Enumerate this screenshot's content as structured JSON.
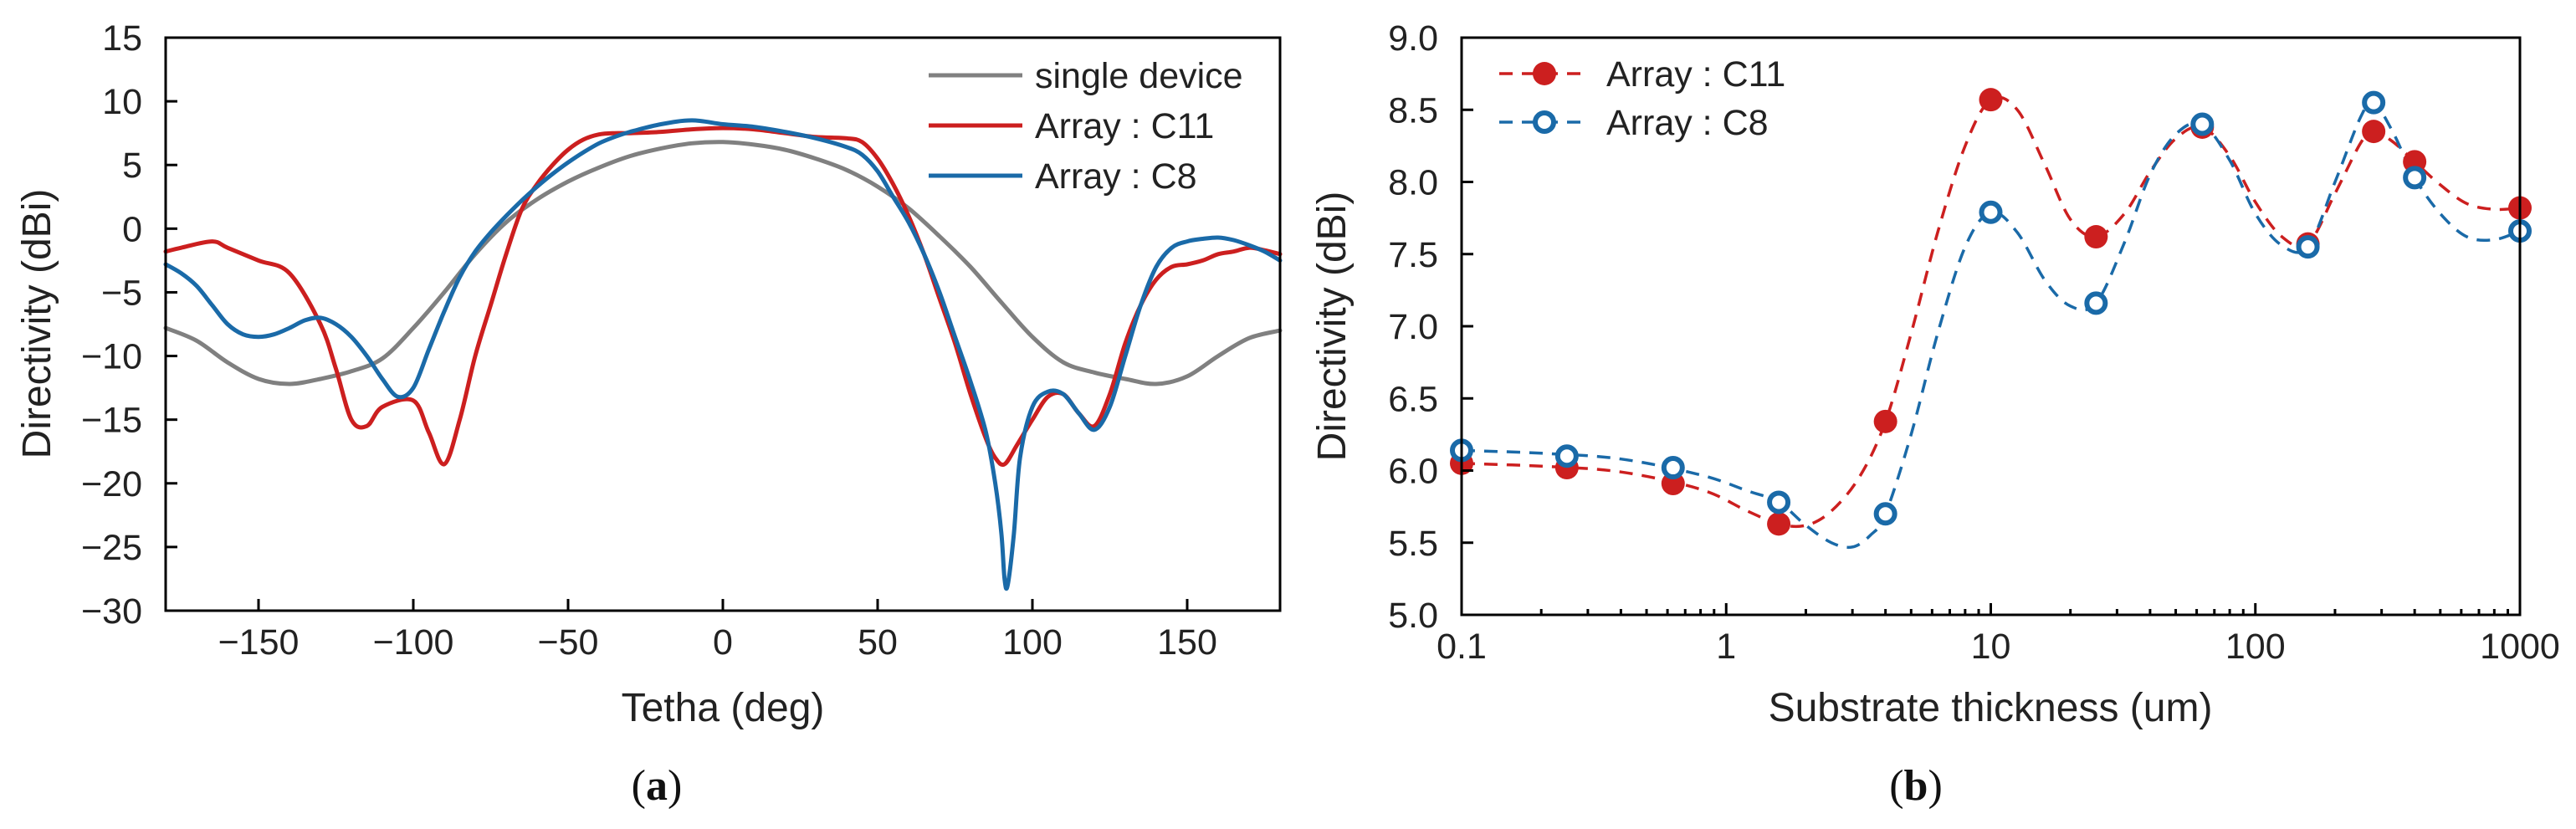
{
  "chart_data": [
    {
      "type": "line",
      "panel": "a",
      "panel_label": {
        "open": "(",
        "letter": "a",
        "close": ")"
      },
      "xlabel": "Tetha (deg)",
      "ylabel": "Directivity (dBi)",
      "xlim": [
        -180,
        180
      ],
      "ylim": [
        -30,
        15
      ],
      "xticks": [
        -150,
        -100,
        -50,
        0,
        50,
        100,
        150
      ],
      "yticks": [
        -30,
        -25,
        -20,
        -15,
        -10,
        -5,
        0,
        5,
        10,
        15
      ],
      "legend_position": "top-right",
      "series": [
        {
          "name": "single device",
          "color": "#808080",
          "x": [
            -180,
            -170,
            -160,
            -150,
            -140,
            -130,
            -120,
            -110,
            -100,
            -90,
            -80,
            -70,
            -60,
            -50,
            -40,
            -30,
            -20,
            -10,
            0,
            10,
            20,
            30,
            40,
            50,
            60,
            70,
            80,
            90,
            100,
            110,
            120,
            130,
            140,
            150,
            160,
            170,
            180
          ],
          "y": [
            -7.8,
            -8.8,
            -10.5,
            -11.8,
            -12.2,
            -11.8,
            -11.2,
            -10.2,
            -7.8,
            -5,
            -2,
            0.5,
            2.3,
            3.7,
            4.8,
            5.7,
            6.3,
            6.7,
            6.8,
            6.6,
            6.2,
            5.5,
            4.6,
            3.3,
            1.6,
            -0.6,
            -3,
            -5.8,
            -8.5,
            -10.5,
            -11.3,
            -11.8,
            -12.2,
            -11.6,
            -10,
            -8.6,
            -8
          ]
        },
        {
          "name": "Array : C11",
          "color": "#cc1f1f",
          "x": [
            -180,
            -175,
            -165,
            -160,
            -150,
            -140,
            -130,
            -125,
            -120,
            -115,
            -110,
            -100,
            -95,
            -90,
            -85,
            -80,
            -75,
            -70,
            -65,
            -60,
            -55,
            -50,
            -45,
            -40,
            -35,
            -30,
            -20,
            -10,
            0,
            10,
            20,
            30,
            40,
            45,
            50,
            55,
            60,
            65,
            70,
            75,
            80,
            85,
            88,
            91,
            95,
            100,
            105,
            110,
            115,
            120,
            125,
            130,
            135,
            140,
            145,
            150,
            155,
            160,
            165,
            170,
            175,
            180
          ],
          "y": [
            -1.8,
            -1.5,
            -1,
            -1.5,
            -2.5,
            -3.5,
            -7.5,
            -11,
            -15,
            -15.5,
            -14,
            -13.5,
            -16,
            -18.5,
            -15,
            -10,
            -6,
            -2,
            1.5,
            3.5,
            5,
            6.2,
            7,
            7.4,
            7.5,
            7.5,
            7.6,
            7.8,
            7.9,
            7.8,
            7.5,
            7.2,
            7.1,
            6.8,
            5.5,
            3.5,
            1,
            -2,
            -5.5,
            -9,
            -13,
            -16.5,
            -18,
            -18.5,
            -17,
            -15,
            -13.2,
            -13,
            -14.5,
            -15.5,
            -13,
            -9,
            -6,
            -4,
            -3,
            -2.8,
            -2.5,
            -2,
            -1.8,
            -1.5,
            -1.7,
            -2
          ]
        },
        {
          "name": "Array : C8",
          "color": "#1a6aa8",
          "x": [
            -180,
            -175,
            -170,
            -165,
            -160,
            -155,
            -150,
            -145,
            -140,
            -135,
            -130,
            -125,
            -120,
            -115,
            -110,
            -105,
            -100,
            -95,
            -90,
            -85,
            -80,
            -75,
            -70,
            -65,
            -60,
            -55,
            -50,
            -45,
            -40,
            -35,
            -30,
            -20,
            -10,
            0,
            10,
            20,
            30,
            40,
            45,
            50,
            55,
            60,
            65,
            70,
            75,
            80,
            85,
            88,
            90,
            91,
            92,
            94,
            96,
            100,
            105,
            110,
            115,
            120,
            125,
            130,
            135,
            140,
            145,
            150,
            155,
            160,
            165,
            170,
            175,
            180
          ],
          "y": [
            -2.8,
            -3.5,
            -4.5,
            -6,
            -7.5,
            -8.3,
            -8.5,
            -8.3,
            -7.8,
            -7.2,
            -7,
            -7.5,
            -8.5,
            -10,
            -11.8,
            -13.2,
            -12.5,
            -9.5,
            -6.5,
            -3.8,
            -1.8,
            -0.3,
            1,
            2.2,
            3.3,
            4.3,
            5.2,
            6,
            6.7,
            7.2,
            7.6,
            8.2,
            8.5,
            8.2,
            8,
            7.6,
            7.1,
            6.4,
            5.8,
            4.5,
            2.5,
            0.5,
            -2,
            -5,
            -8.5,
            -12,
            -16,
            -20,
            -24,
            -27.5,
            -28,
            -24,
            -18,
            -14,
            -12.8,
            -13,
            -14.5,
            -15.8,
            -14,
            -10,
            -6,
            -3,
            -1.5,
            -1,
            -0.8,
            -0.7,
            -0.9,
            -1.3,
            -1.8,
            -2.5
          ]
        }
      ]
    },
    {
      "type": "scatter",
      "panel": "b",
      "panel_label": {
        "open": "(",
        "letter": "b",
        "close": ")"
      },
      "xlabel": "Substrate thickness (um)",
      "ylabel": "Directivity (dBi)",
      "xscale": "log",
      "xlim": [
        0.1,
        1000
      ],
      "ylim": [
        5.0,
        9.0
      ],
      "xticks": [
        0.1,
        1,
        10,
        100,
        1000
      ],
      "xtick_labels": [
        "0.1",
        "1",
        "10",
        "100",
        "1000"
      ],
      "yticks": [
        5.0,
        5.5,
        6.0,
        6.5,
        7.0,
        7.5,
        8.0,
        8.5,
        9.0
      ],
      "ytick_labels": [
        "5.0",
        "5.5",
        "6.0",
        "6.5",
        "7.0",
        "7.5",
        "8.0",
        "8.5",
        "9.0"
      ],
      "legend_position": "top-left",
      "series": [
        {
          "name": "Array : C11",
          "color": "#cc1f1f",
          "marker": "filled-circle",
          "line": "dashed",
          "points": [
            [
              0.1,
              6.05
            ],
            [
              0.25,
              6.02
            ],
            [
              0.63,
              5.91
            ],
            [
              1.58,
              5.63
            ],
            [
              4.0,
              6.34
            ],
            [
              10,
              8.57
            ],
            [
              25,
              7.62
            ],
            [
              63,
              8.38
            ],
            [
              158,
              7.57
            ],
            [
              280,
              8.35
            ],
            [
              400,
              8.14
            ],
            [
              1000,
              7.82
            ]
          ],
          "curve": [
            [
              0.1,
              6.05
            ],
            [
              0.2,
              6.03
            ],
            [
              0.4,
              5.99
            ],
            [
              0.8,
              5.87
            ],
            [
              1.2,
              5.72
            ],
            [
              1.58,
              5.63
            ],
            [
              2.0,
              5.62
            ],
            [
              2.5,
              5.72
            ],
            [
              3.2,
              5.96
            ],
            [
              4.0,
              6.34
            ],
            [
              5.0,
              6.95
            ],
            [
              6.3,
              7.65
            ],
            [
              8.0,
              8.25
            ],
            [
              10,
              8.57
            ],
            [
              12.6,
              8.5
            ],
            [
              16,
              8.12
            ],
            [
              20,
              7.74
            ],
            [
              25,
              7.62
            ],
            [
              32,
              7.78
            ],
            [
              40,
              8.07
            ],
            [
              50,
              8.3
            ],
            [
              63,
              8.38
            ],
            [
              80,
              8.18
            ],
            [
              100,
              7.86
            ],
            [
              126,
              7.62
            ],
            [
              158,
              7.57
            ],
            [
              200,
              7.92
            ],
            [
              250,
              8.27
            ],
            [
              280,
              8.35
            ],
            [
              330,
              8.28
            ],
            [
              400,
              8.14
            ],
            [
              500,
              7.98
            ],
            [
              630,
              7.85
            ],
            [
              800,
              7.81
            ],
            [
              1000,
              7.82
            ]
          ]
        },
        {
          "name": "Array : C8",
          "color": "#1a6aa8",
          "marker": "open-circle",
          "line": "dashed",
          "points": [
            [
              0.1,
              6.14
            ],
            [
              0.25,
              6.1
            ],
            [
              0.63,
              6.02
            ],
            [
              1.58,
              5.78
            ],
            [
              4.0,
              5.7
            ],
            [
              10,
              7.79
            ],
            [
              25,
              7.16
            ],
            [
              63,
              8.4
            ],
            [
              158,
              7.55
            ],
            [
              280,
              8.55
            ],
            [
              400,
              8.03
            ],
            [
              1000,
              7.66
            ]
          ],
          "curve": [
            [
              0.1,
              6.14
            ],
            [
              0.2,
              6.12
            ],
            [
              0.4,
              6.08
            ],
            [
              0.8,
              5.97
            ],
            [
              1.2,
              5.86
            ],
            [
              1.58,
              5.78
            ],
            [
              2.0,
              5.62
            ],
            [
              2.5,
              5.5
            ],
            [
              3.0,
              5.47
            ],
            [
              3.5,
              5.55
            ],
            [
              4.0,
              5.7
            ],
            [
              5.0,
              6.25
            ],
            [
              6.3,
              6.95
            ],
            [
              8.0,
              7.55
            ],
            [
              10,
              7.79
            ],
            [
              12.6,
              7.65
            ],
            [
              16,
              7.32
            ],
            [
              20,
              7.14
            ],
            [
              25,
              7.16
            ],
            [
              32,
              7.58
            ],
            [
              40,
              8.05
            ],
            [
              50,
              8.33
            ],
            [
              63,
              8.4
            ],
            [
              80,
              8.15
            ],
            [
              100,
              7.78
            ],
            [
              126,
              7.56
            ],
            [
              158,
              7.55
            ],
            [
              200,
              8.0
            ],
            [
              250,
              8.45
            ],
            [
              280,
              8.55
            ],
            [
              330,
              8.35
            ],
            [
              400,
              8.03
            ],
            [
              500,
              7.78
            ],
            [
              630,
              7.62
            ],
            [
              800,
              7.6
            ],
            [
              1000,
              7.66
            ]
          ]
        }
      ]
    }
  ]
}
